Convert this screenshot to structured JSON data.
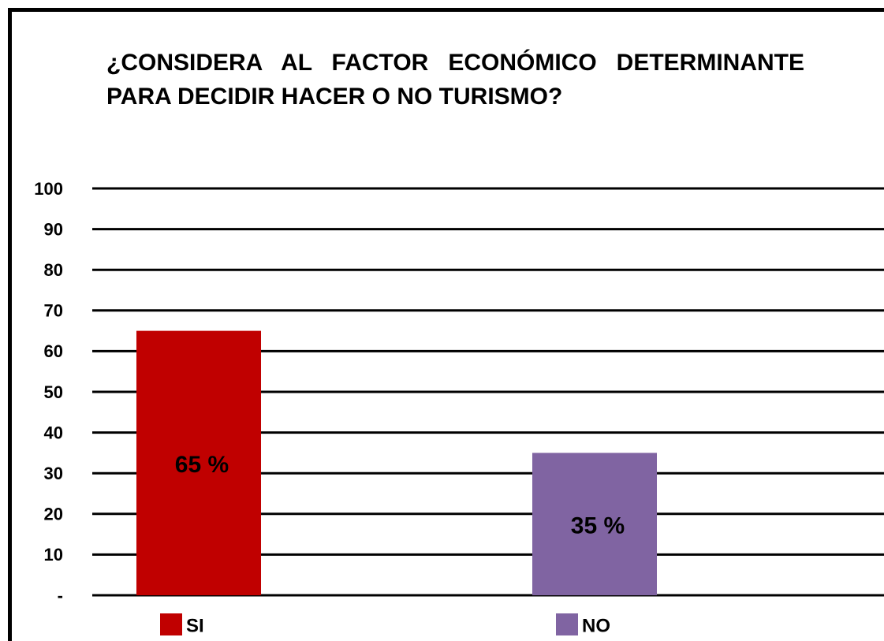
{
  "chart_data": {
    "type": "bar",
    "title": "¿CONSIDERA AL FACTOR ECONÓMICO DETERMINANTE PARA DECIDIR HACER O NO TURISMO?",
    "categories": [
      "SI",
      "NO"
    ],
    "values": [
      65,
      35
    ],
    "value_labels": [
      "65 %",
      "35 %"
    ],
    "colors": [
      "#c00000",
      "#8064a2"
    ],
    "ylim": [
      0,
      100
    ],
    "yticks": [
      {
        "value": 0,
        "label": "-"
      },
      10,
      20,
      30,
      40,
      50,
      60,
      70,
      80,
      90,
      100
    ],
    "grid": true
  }
}
